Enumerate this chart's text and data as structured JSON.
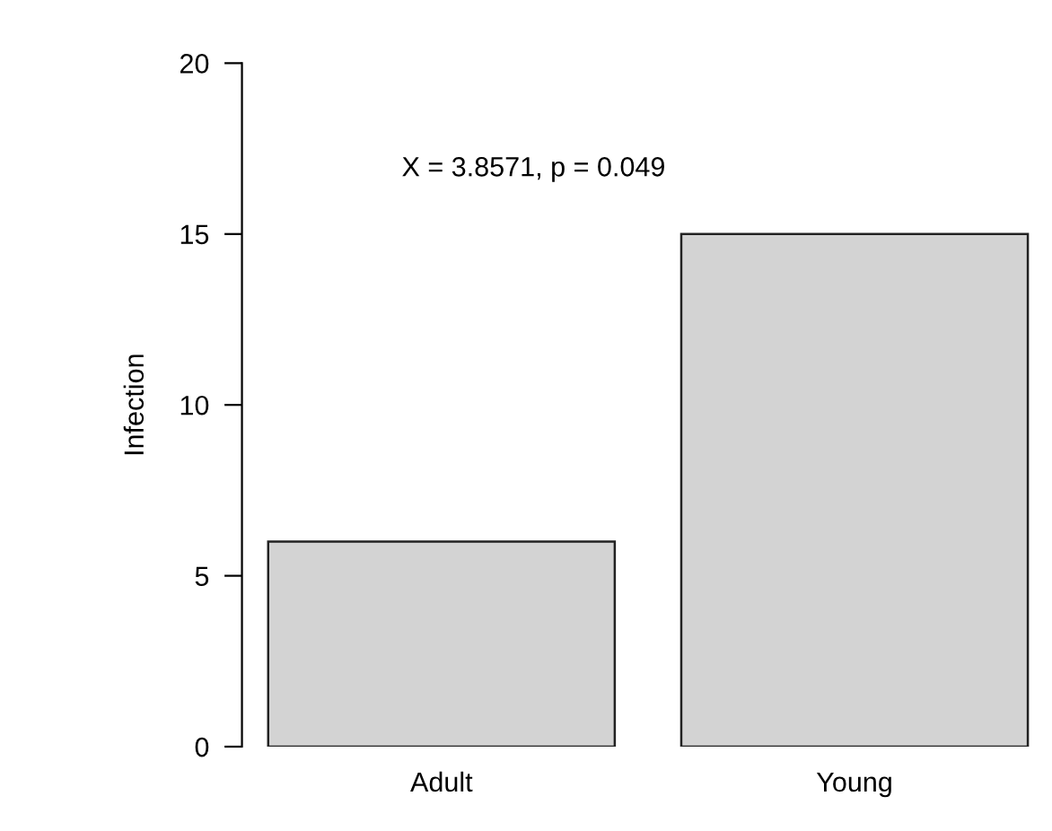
{
  "chart_data": {
    "type": "bar",
    "ylabel": "Infection",
    "categories": [
      "Adult",
      "Young"
    ],
    "values": [
      6,
      15
    ],
    "color": "#d3d3d3",
    "ylim": [
      0,
      20
    ],
    "yticks": [
      0,
      5,
      10,
      15,
      20
    ],
    "grid": false,
    "legend": false,
    "annotations": [
      "X = 3.8571, p = 0.049"
    ]
  }
}
